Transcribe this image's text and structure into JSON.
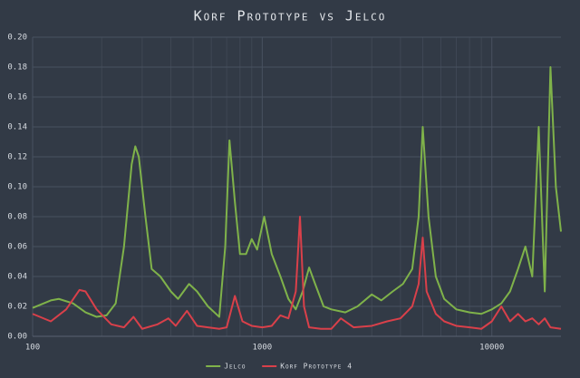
{
  "chart_data": {
    "type": "line",
    "title": "Korf Prototype vs Jelco",
    "xscale": "log",
    "xlim": [
      100,
      20000
    ],
    "xticks": [
      100,
      1000,
      10000
    ],
    "ylim": [
      0,
      0.2
    ],
    "yticks": [
      {
        "value": 0,
        "label": "0.00"
      },
      0.02,
      0.04,
      0.06,
      0.08,
      {
        "value": 0.1,
        "label": "0.10"
      },
      0.12,
      0.14,
      0.16,
      0.18,
      {
        "value": 0.2,
        "label": "0.20"
      }
    ],
    "grid": true,
    "legend": "bottom",
    "series": [
      {
        "name": "Jelco",
        "color": "#7fb24a",
        "x": [
          100,
          120,
          130,
          150,
          170,
          190,
          210,
          230,
          250,
          270,
          280,
          290,
          310,
          330,
          360,
          400,
          430,
          480,
          520,
          580,
          650,
          690,
          720,
          760,
          800,
          850,
          900,
          950,
          1020,
          1100,
          1200,
          1300,
          1400,
          1500,
          1600,
          1700,
          1850,
          2000,
          2300,
          2600,
          3000,
          3300,
          3700,
          4100,
          4500,
          4800,
          5000,
          5300,
          5700,
          6200,
          7000,
          8000,
          9000,
          10000,
          11000,
          12000,
          13000,
          14000,
          15000,
          16000,
          17000,
          18000,
          19000,
          20000
        ],
        "values": [
          0.019,
          0.024,
          0.025,
          0.022,
          0.016,
          0.013,
          0.014,
          0.022,
          0.06,
          0.115,
          0.127,
          0.12,
          0.08,
          0.045,
          0.04,
          0.03,
          0.025,
          0.035,
          0.03,
          0.02,
          0.013,
          0.06,
          0.131,
          0.09,
          0.055,
          0.055,
          0.065,
          0.058,
          0.08,
          0.055,
          0.04,
          0.025,
          0.018,
          0.03,
          0.046,
          0.035,
          0.02,
          0.018,
          0.016,
          0.02,
          0.028,
          0.024,
          0.03,
          0.035,
          0.045,
          0.08,
          0.14,
          0.08,
          0.04,
          0.025,
          0.018,
          0.016,
          0.015,
          0.018,
          0.022,
          0.03,
          0.045,
          0.06,
          0.04,
          0.14,
          0.03,
          0.18,
          0.1,
          0.07
        ]
      },
      {
        "name": "Korf Prototype 4",
        "color": "#d9404a",
        "x": [
          100,
          120,
          140,
          160,
          170,
          190,
          220,
          250,
          275,
          300,
          350,
          390,
          420,
          470,
          520,
          580,
          650,
          700,
          760,
          820,
          900,
          1000,
          1100,
          1200,
          1300,
          1400,
          1460,
          1520,
          1600,
          1800,
          2000,
          2200,
          2500,
          3000,
          3500,
          4000,
          4500,
          4800,
          5000,
          5200,
          5700,
          6200,
          7000,
          8000,
          9000,
          10000,
          11000,
          12000,
          13000,
          14000,
          15000,
          16000,
          17000,
          18000,
          20000
        ],
        "values": [
          0.015,
          0.01,
          0.018,
          0.031,
          0.03,
          0.018,
          0.008,
          0.006,
          0.013,
          0.005,
          0.008,
          0.012,
          0.007,
          0.017,
          0.007,
          0.006,
          0.005,
          0.006,
          0.027,
          0.01,
          0.007,
          0.006,
          0.007,
          0.014,
          0.012,
          0.03,
          0.08,
          0.02,
          0.006,
          0.005,
          0.005,
          0.012,
          0.006,
          0.007,
          0.01,
          0.012,
          0.02,
          0.035,
          0.066,
          0.03,
          0.015,
          0.01,
          0.007,
          0.006,
          0.005,
          0.01,
          0.02,
          0.01,
          0.015,
          0.01,
          0.012,
          0.008,
          0.012,
          0.006,
          0.005
        ]
      }
    ]
  }
}
